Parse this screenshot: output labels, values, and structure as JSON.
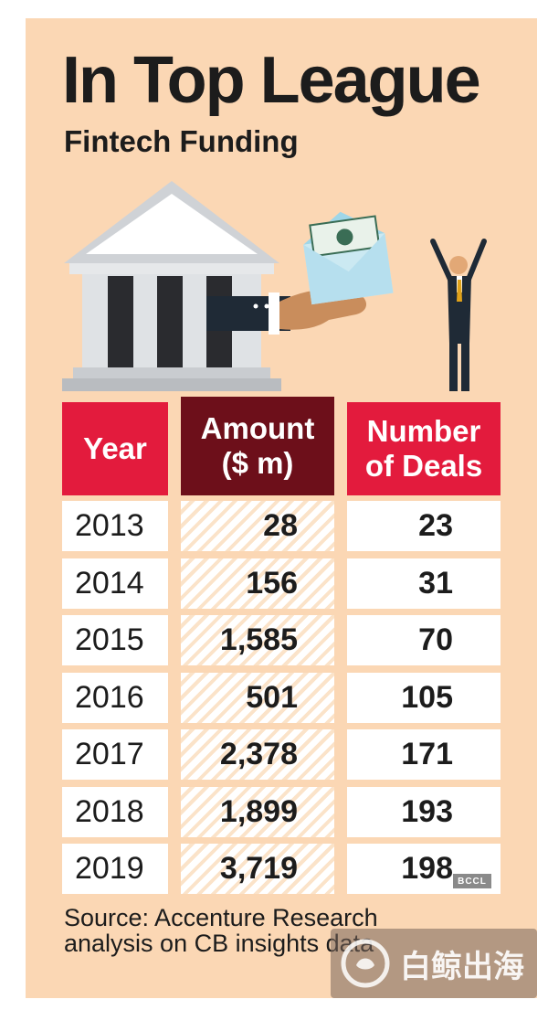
{
  "title": "In Top League",
  "subtitle": "Fintech Funding",
  "source": "Source: Accenture Research analysis on CB insights data",
  "badge": "BCCL",
  "watermark": "白鲸出海",
  "icons": [
    "bank-building-icon",
    "hand-envelope-money-icon",
    "cheering-businessman-icon"
  ],
  "colors": {
    "background": "#fbd7b4",
    "header_red": "#e31b3d",
    "header_maroon": "#6d0f1a",
    "text": "#1c1c1c"
  },
  "chart_data": {
    "type": "table",
    "title": "In Top League",
    "subtitle": "Fintech Funding",
    "columns": [
      "Year",
      "Amount ($ m)",
      "Number of Deals"
    ],
    "header_lines": {
      "amount": [
        "Amount",
        "($ m)"
      ],
      "deals": [
        "Number",
        "of Deals"
      ]
    },
    "rows": [
      {
        "year": "2013",
        "amount": "28",
        "deals": "23"
      },
      {
        "year": "2014",
        "amount": "156",
        "deals": "31"
      },
      {
        "year": "2015",
        "amount": "1,585",
        "deals": "70"
      },
      {
        "year": "2016",
        "amount": "501",
        "deals": "105"
      },
      {
        "year": "2017",
        "amount": "2,378",
        "deals": "171"
      },
      {
        "year": "2018",
        "amount": "1,899",
        "deals": "193"
      },
      {
        "year": "2019",
        "amount": "3,719",
        "deals": "198"
      }
    ]
  }
}
